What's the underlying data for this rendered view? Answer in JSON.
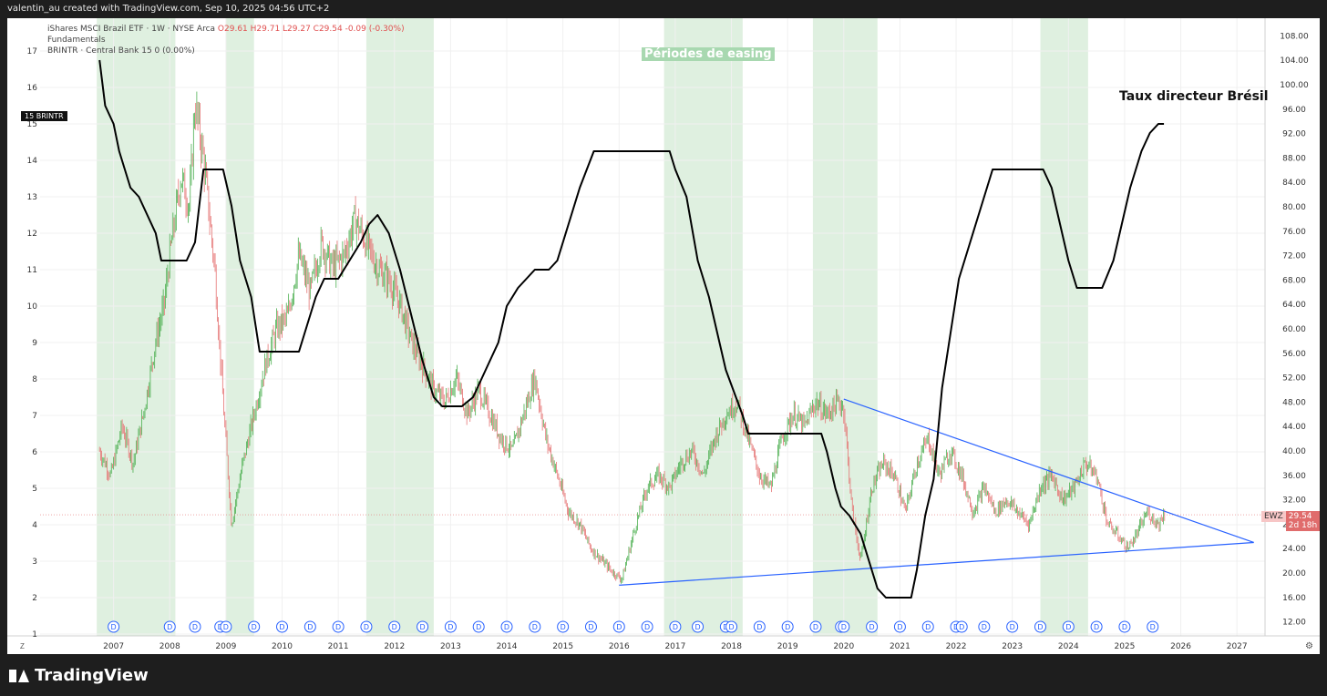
{
  "header": {
    "attribution": "valentin_au created with TradingView.com, Sep 10, 2025 04:56 UTC+2"
  },
  "brand": {
    "name": "TradingView",
    "icon": "tradingview-logo-icon"
  },
  "legend": {
    "line1_title": "iShares MSCI Brazil ETF · 1W · NYSE Arca",
    "ohlc": "O29.61 H29.71 L29.27 C29.54 -0.09 (-0.30%)",
    "line2": "Fundamentals",
    "line3": "BRINTR · Central Bank  15  0 (0.00%)"
  },
  "tags": {
    "brintr_value": "15",
    "brintr_name": "BRINTR",
    "ewz_symbol": "EWZ",
    "ewz_price": "29.54",
    "ewz_countdown": "2d 18h"
  },
  "annotations": {
    "easing": "Périodes de easing",
    "rate": "Taux directeur Brésil"
  },
  "controls": {
    "zoom_glyph": "Z",
    "settings_glyph": "⚙"
  },
  "colors": {
    "easing_band": "#dff0e0",
    "rate_line": "#000000",
    "up_candle": "#4caf50",
    "down_candle": "#e57373",
    "trendline": "#2962ff",
    "dividend_marker": "#2962ff",
    "price_line": "#e57373"
  },
  "chart_data": {
    "type": "line",
    "title": "",
    "xlabel": "",
    "x_ticks": [
      "2007",
      "2008",
      "2009",
      "2010",
      "2011",
      "2012",
      "2013",
      "2014",
      "2015",
      "2016",
      "2017",
      "2018",
      "2019",
      "2020",
      "2021",
      "2022",
      "2023",
      "2024",
      "2025",
      "2026",
      "2027"
    ],
    "left_axis": {
      "ticks": [
        1,
        2,
        3,
        4,
        5,
        6,
        7,
        8,
        9,
        10,
        11,
        12,
        13,
        14,
        15,
        16,
        17
      ],
      "ylim": [
        1,
        17.5
      ]
    },
    "right_axis": {
      "ticks": [
        "12.00",
        "16.00",
        "20.00",
        "24.00",
        "28.00",
        "32.00",
        "36.00",
        "40.00",
        "44.00",
        "48.00",
        "52.00",
        "56.00",
        "60.00",
        "64.00",
        "68.00",
        "72.00",
        "76.00",
        "80.00",
        "84.00",
        "88.00",
        "92.00",
        "96.00",
        "100.00",
        "104.00",
        "108.00"
      ],
      "ylim": [
        10,
        108.5
      ]
    },
    "easing_periods": [
      [
        2006.7,
        2008.1
      ],
      [
        2009.0,
        2009.5
      ],
      [
        2011.5,
        2012.7
      ],
      [
        2016.8,
        2018.2
      ],
      [
        2019.45,
        2020.6
      ],
      [
        2023.5,
        2024.35
      ]
    ],
    "series": [
      {
        "name": "BRINTR",
        "axis": "left",
        "x": [
          2006.75,
          2006.85,
          2007.0,
          2007.1,
          2007.3,
          2007.45,
          2007.6,
          2007.75,
          2007.85,
          2008.3,
          2008.45,
          2008.6,
          2008.95,
          2009.1,
          2009.25,
          2009.45,
          2009.6,
          2010.3,
          2010.45,
          2010.6,
          2010.75,
          2011.0,
          2011.2,
          2011.4,
          2011.55,
          2011.7,
          2011.9,
          2012.1,
          2012.3,
          2012.5,
          2012.7,
          2012.85,
          2013.2,
          2013.4,
          2013.55,
          2013.7,
          2013.85,
          2014.0,
          2014.2,
          2014.5,
          2014.75,
          2014.9,
          2015.1,
          2015.3,
          2015.55,
          2015.7,
          2016.75,
          2016.9,
          2017.0,
          2017.2,
          2017.4,
          2017.6,
          2017.75,
          2017.9,
          2018.2,
          2018.3,
          2019.6,
          2019.7,
          2019.85,
          2019.95,
          2020.1,
          2020.3,
          2020.45,
          2020.6,
          2020.75,
          2021.2,
          2021.3,
          2021.45,
          2021.6,
          2021.75,
          2021.9,
          2022.05,
          2022.25,
          2022.45,
          2022.65,
          2023.55,
          2023.7,
          2023.85,
          2024.0,
          2024.15,
          2024.35,
          2024.6,
          2024.8,
          2024.95,
          2025.1,
          2025.3,
          2025.45,
          2025.6,
          2025.7
        ],
        "values": [
          16.75,
          15.5,
          15.0,
          14.25,
          13.25,
          13.0,
          12.5,
          12.0,
          11.25,
          11.25,
          11.75,
          13.75,
          13.75,
          12.75,
          11.25,
          10.25,
          8.75,
          8.75,
          9.5,
          10.25,
          10.75,
          10.75,
          11.25,
          11.75,
          12.25,
          12.5,
          12.0,
          11.0,
          9.75,
          8.5,
          7.5,
          7.25,
          7.25,
          7.5,
          8.0,
          8.5,
          9.0,
          10.0,
          10.5,
          11.0,
          11.0,
          11.25,
          12.25,
          13.25,
          14.25,
          14.25,
          14.25,
          14.25,
          13.75,
          13.0,
          11.25,
          10.25,
          9.25,
          8.25,
          7.0,
          6.5,
          6.5,
          6.0,
          5.0,
          4.5,
          4.25,
          3.75,
          3.0,
          2.25,
          2.0,
          2.0,
          2.75,
          4.25,
          5.25,
          7.75,
          9.25,
          10.75,
          11.75,
          12.75,
          13.75,
          13.75,
          13.25,
          12.25,
          11.25,
          10.5,
          10.5,
          10.5,
          11.25,
          12.25,
          13.25,
          14.25,
          14.75,
          15.0,
          15.0
        ]
      },
      {
        "name": "EWZ",
        "axis": "right",
        "x": [
          2006.75,
          2006.95,
          2007.15,
          2007.35,
          2007.55,
          2007.75,
          2007.9,
          2008.0,
          2008.2,
          2008.35,
          2008.45,
          2008.6,
          2008.8,
          2008.95,
          2009.1,
          2009.3,
          2009.5,
          2009.7,
          2009.9,
          2010.1,
          2010.3,
          2010.5,
          2010.7,
          2010.9,
          2011.1,
          2011.3,
          2011.5,
          2011.7,
          2011.9,
          2012.1,
          2012.3,
          2012.5,
          2012.7,
          2012.9,
          2013.1,
          2013.3,
          2013.5,
          2013.7,
          2013.9,
          2014.1,
          2014.3,
          2014.5,
          2014.7,
          2014.9,
          2015.1,
          2015.3,
          2015.5,
          2015.7,
          2015.9,
          2016.05,
          2016.3,
          2016.5,
          2016.7,
          2016.9,
          2017.1,
          2017.3,
          2017.5,
          2017.7,
          2017.9,
          2018.1,
          2018.3,
          2018.5,
          2018.7,
          2018.9,
          2019.1,
          2019.3,
          2019.5,
          2019.7,
          2019.9,
          2020.0,
          2020.15,
          2020.3,
          2020.5,
          2020.7,
          2020.9,
          2021.1,
          2021.3,
          2021.5,
          2021.7,
          2021.9,
          2022.1,
          2022.3,
          2022.5,
          2022.7,
          2022.9,
          2023.1,
          2023.3,
          2023.5,
          2023.7,
          2023.9,
          2024.1,
          2024.3,
          2024.5,
          2024.7,
          2024.9,
          2025.05,
          2025.2,
          2025.4,
          2025.6,
          2025.72
        ],
        "values": [
          40,
          36,
          44,
          38,
          47,
          58,
          64,
          72,
          85,
          80,
          97,
          88,
          70,
          48,
          28,
          38,
          46,
          54,
          60,
          62,
          72,
          66,
          74,
          70,
          72,
          78,
          74,
          70,
          68,
          64,
          58,
          54,
          50,
          48,
          52,
          46,
          50,
          46,
          42,
          40,
          46,
          52,
          42,
          36,
          30,
          28,
          24,
          22,
          20,
          19,
          28,
          34,
          36,
          34,
          38,
          40,
          36,
          42,
          46,
          48,
          42,
          36,
          34,
          42,
          46,
          44,
          48,
          46,
          48,
          47,
          30,
          22,
          34,
          38,
          36,
          30,
          38,
          42,
          36,
          40,
          36,
          30,
          34,
          30,
          32,
          30,
          28,
          34,
          36,
          32,
          34,
          38,
          36,
          28,
          26,
          24,
          26,
          30,
          28,
          30
        ]
      }
    ],
    "trendlines": [
      {
        "from": [
          2020.0,
          48.5
        ],
        "to": [
          2027.3,
          25.0
        ]
      },
      {
        "from": [
          2016.0,
          18.0
        ],
        "to": [
          2027.3,
          25.0
        ]
      }
    ],
    "dividend_markers": {
      "label": "D",
      "x": [
        2007.0,
        2008.0,
        2008.45,
        2008.9,
        2009.0,
        2009.5,
        2010.0,
        2010.5,
        2011.0,
        2011.5,
        2012.0,
        2012.5,
        2013.0,
        2013.5,
        2014.0,
        2014.5,
        2015.0,
        2015.5,
        2016.0,
        2016.5,
        2017.0,
        2017.4,
        2017.9,
        2018.0,
        2018.5,
        2019.0,
        2019.5,
        2019.95,
        2020.0,
        2020.5,
        2021.0,
        2021.5,
        2022.0,
        2022.1,
        2022.5,
        2023.0,
        2023.5,
        2024.0,
        2024.5,
        2025.0,
        2025.5
      ]
    }
  }
}
